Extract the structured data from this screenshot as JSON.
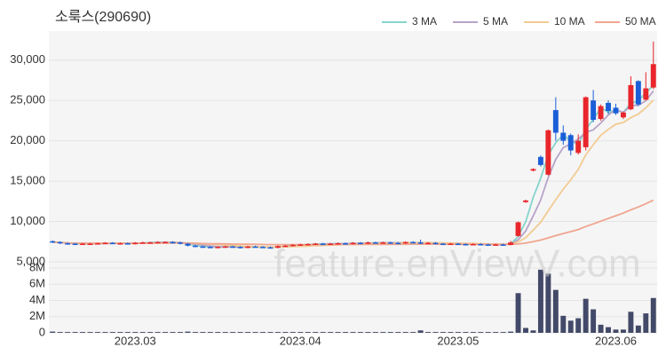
{
  "chart_data": {
    "type": "candlestick",
    "title": "소룩스(290690)",
    "watermark": "feature.enViewV.com",
    "categories": [
      null,
      null,
      null,
      null,
      null,
      null,
      null,
      null,
      null,
      null,
      null,
      "2023.03",
      null,
      null,
      null,
      null,
      null,
      null,
      null,
      null,
      null,
      null,
      null,
      null,
      null,
      null,
      null,
      null,
      null,
      null,
      null,
      null,
      null,
      "2023.04",
      null,
      null,
      null,
      null,
      null,
      null,
      null,
      null,
      null,
      null,
      null,
      null,
      null,
      null,
      null,
      null,
      null,
      null,
      null,
      null,
      "2023.05",
      null,
      null,
      null,
      null,
      null,
      null,
      null,
      null,
      null,
      null,
      null,
      null,
      null,
      null,
      null,
      null,
      null,
      null,
      null,
      null,
      "2023.06",
      null,
      null,
      null,
      null,
      null
    ],
    "open": [
      7550,
      7450,
      7300,
      7250,
      7200,
      7250,
      7250,
      7300,
      7350,
      7300,
      7300,
      7250,
      7350,
      7400,
      7400,
      7450,
      7450,
      7400,
      7250,
      7000,
      6900,
      6850,
      6800,
      6850,
      6900,
      6850,
      6750,
      6900,
      6850,
      6800,
      6750,
      6950,
      7000,
      7100,
      7150,
      7200,
      7250,
      7200,
      7250,
      7300,
      7250,
      7350,
      7300,
      7400,
      7350,
      7400,
      7350,
      7300,
      7450,
      7400,
      7300,
      7350,
      7250,
      7200,
      7250,
      7200,
      7150,
      7200,
      7150,
      7100,
      7150,
      7100,
      8200,
      12400,
      16300,
      18000,
      15800,
      23800,
      21000,
      20700,
      18500,
      19200,
      25000,
      22700,
      24700,
      24100,
      22900,
      23900,
      27400,
      25100,
      26600
    ],
    "high": [
      7650,
      7550,
      7400,
      7350,
      7350,
      7350,
      7400,
      7450,
      7450,
      7400,
      7400,
      7450,
      7500,
      7500,
      7550,
      7550,
      7550,
      7500,
      7350,
      7100,
      7000,
      6950,
      6950,
      7000,
      7000,
      6950,
      7000,
      7000,
      6950,
      6900,
      7050,
      7100,
      7200,
      7250,
      7300,
      7350,
      7350,
      7350,
      7400,
      7400,
      7450,
      7450,
      7500,
      7500,
      7500,
      7500,
      7450,
      7550,
      7550,
      7750,
      7450,
      7450,
      7350,
      7350,
      7350,
      7300,
      7300,
      7300,
      7250,
      7250,
      7250,
      7600,
      10000,
      12700,
      16600,
      18200,
      21400,
      25400,
      21900,
      20900,
      20800,
      25500,
      26300,
      24500,
      25000,
      24600,
      23600,
      28000,
      27500,
      28500,
      32300
    ],
    "low": [
      7350,
      7200,
      7150,
      7100,
      7100,
      7150,
      7150,
      7200,
      7200,
      7200,
      7150,
      7150,
      7250,
      7300,
      7300,
      7350,
      7300,
      7150,
      6900,
      6800,
      6750,
      6700,
      6700,
      6750,
      6750,
      6650,
      6650,
      6750,
      6700,
      6650,
      6650,
      6850,
      6900,
      7000,
      7050,
      7100,
      7100,
      7100,
      7150,
      7150,
      7150,
      7200,
      7200,
      7250,
      7250,
      7250,
      7200,
      7200,
      7300,
      7200,
      7200,
      7150,
      7100,
      7100,
      7100,
      7050,
      7050,
      7050,
      7000,
      7000,
      7000,
      7050,
      8100,
      12300,
      16200,
      16800,
      15700,
      20000,
      19500,
      18200,
      18300,
      18800,
      22300,
      22500,
      23300,
      23200,
      22700,
      23800,
      24300,
      25000,
      26400
    ],
    "close": [
      7450,
      7300,
      7250,
      7200,
      7250,
      7250,
      7300,
      7350,
      7300,
      7300,
      7250,
      7350,
      7400,
      7400,
      7450,
      7450,
      7400,
      7250,
      7000,
      6900,
      6850,
      6800,
      6850,
      6900,
      6850,
      6750,
      6900,
      6850,
      6800,
      6750,
      6950,
      7000,
      7100,
      7150,
      7200,
      7250,
      7200,
      7250,
      7300,
      7250,
      7350,
      7300,
      7400,
      7350,
      7400,
      7350,
      7300,
      7450,
      7400,
      7300,
      7350,
      7250,
      7200,
      7250,
      7200,
      7150,
      7200,
      7150,
      7100,
      7150,
      7100,
      7400,
      9900,
      12600,
      16500,
      17000,
      21300,
      21000,
      20000,
      18800,
      20000,
      25400,
      22600,
      24300,
      23700,
      23400,
      23500,
      26900,
      24500,
      26500,
      29500
    ],
    "volume": [
      150000,
      100000,
      100000,
      100000,
      100000,
      100000,
      100000,
      100000,
      100000,
      100000,
      100000,
      100000,
      100000,
      100000,
      100000,
      100000,
      100000,
      100000,
      150000,
      100000,
      100000,
      100000,
      100000,
      100000,
      100000,
      100000,
      100000,
      100000,
      100000,
      100000,
      100000,
      100000,
      100000,
      100000,
      100000,
      100000,
      100000,
      100000,
      100000,
      100000,
      100000,
      100000,
      100000,
      100000,
      100000,
      100000,
      100000,
      100000,
      100000,
      300000,
      100000,
      100000,
      100000,
      100000,
      100000,
      100000,
      100000,
      100000,
      100000,
      100000,
      100000,
      150000,
      4900000,
      600000,
      300000,
      7800000,
      7300000,
      5300000,
      2100000,
      1500000,
      1800000,
      4200000,
      2900000,
      1000000,
      700000,
      400000,
      400000,
      2600000,
      900000,
      2400000,
      4300000
    ],
    "up_color": "#e8262b",
    "down_color": "#1a5fd8",
    "volume_color": "#434968",
    "moving_averages": [
      {
        "name": "3 MA",
        "window": 3,
        "color": "#86d4cc"
      },
      {
        "name": "5 MA",
        "window": 5,
        "color": "#b7a3c8"
      },
      {
        "name": "10 MA",
        "window": 10,
        "color": "#f2cb92"
      },
      {
        "name": "50 MA",
        "window": 50,
        "color": "#f0a58f"
      }
    ],
    "ylim": [
      5000,
      33600
    ],
    "yticks": [
      {
        "value": 5000,
        "label": "5,000"
      },
      {
        "value": 10000,
        "label": "10,000"
      },
      {
        "value": 15000,
        "label": "15,000"
      },
      {
        "value": 20000,
        "label": "20,000"
      },
      {
        "value": 25000,
        "label": "25,000"
      },
      {
        "value": 30000,
        "label": "30,000"
      }
    ],
    "y2lim": [
      0,
      8000000
    ],
    "y2ticks": [
      0,
      {
        "value": 2000000,
        "label": "2M"
      },
      {
        "value": 4000000,
        "label": "4M"
      },
      {
        "value": 6000000,
        "label": "6M"
      },
      {
        "value": 8000000,
        "label": "8M"
      }
    ],
    "grid": true
  }
}
